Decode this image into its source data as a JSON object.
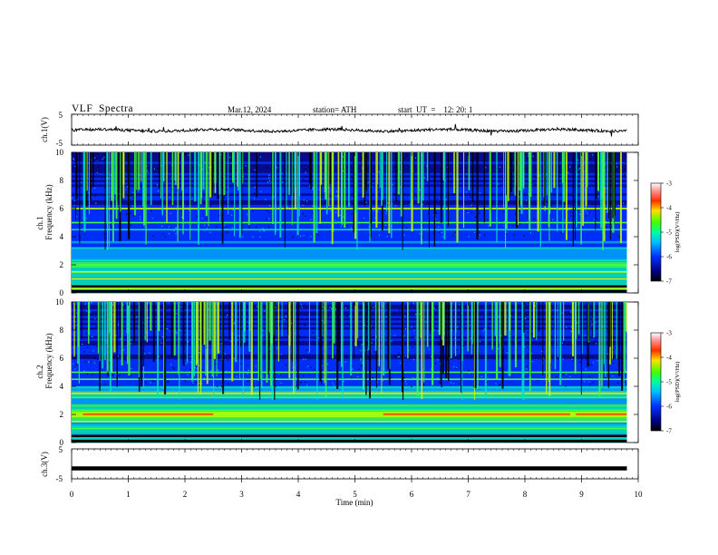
{
  "header": {
    "title": "VLF  Spectra",
    "date": "Mar.12, 2024",
    "station": "station= ATH",
    "start_ut": "start  UT  =    12: 20: 1"
  },
  "chart_data": [
    {
      "type": "line",
      "panel": "ch1-waveform",
      "ylabel": "ch.1(V)",
      "yticks": [
        "5",
        "-5"
      ],
      "ylim": [
        -5,
        5
      ],
      "xlim": [
        0,
        10
      ],
      "series": [
        {
          "values_description_range": [
            -1.2,
            0.6
          ]
        }
      ],
      "baseline": -0.2
    },
    {
      "type": "heatmap",
      "panel": "ch1-spectrogram",
      "ylabel_top": "ch.1",
      "ylabel": "Frequency (kHz)",
      "yticks": [
        "0",
        "2",
        "4",
        "6",
        "8",
        "10"
      ],
      "ylim": [
        0,
        10
      ],
      "xlim": [
        0,
        9.8
      ],
      "colorbar": {
        "label": "log(PSD)(V²/Hz)",
        "ticks": [
          "-3",
          "-4",
          "-5",
          "-6",
          "-7"
        ],
        "range": [
          -7,
          -3
        ]
      },
      "bands_khz": [
        0.3,
        0.6,
        1.0,
        1.5,
        2.0,
        2.3,
        3.2,
        4.5,
        5.0,
        6.0
      ],
      "bright_band_khz": 2.0
    },
    {
      "type": "heatmap",
      "panel": "ch2-spectrogram",
      "ylabel_top": "ch.2",
      "ylabel": "Frequency (kHz)",
      "yticks": [
        "0",
        "2",
        "4",
        "6",
        "8",
        "10"
      ],
      "ylim": [
        0,
        10
      ],
      "xlim": [
        0,
        9.8
      ],
      "colorbar": {
        "label": "log(PSD)(V²/Hz)",
        "ticks": [
          "-3",
          "-4",
          "-5",
          "-6",
          "-7"
        ],
        "range": [
          -7,
          -3
        ]
      },
      "bands_khz": [
        0.5,
        1.0,
        1.5,
        2.0,
        2.3,
        3.2,
        3.5,
        4.5,
        5.0
      ],
      "bright_band_khz": 2.0
    },
    {
      "type": "line",
      "panel": "ch3-waveform",
      "ylabel": "ch.3(V)",
      "yticks": [
        "5",
        "-5"
      ],
      "ylim": [
        -5,
        5
      ],
      "xlim": [
        0,
        10
      ],
      "series": [
        {
          "constant_value": -1.5
        }
      ]
    }
  ],
  "xaxis": {
    "label": "Time  (min)",
    "ticks": [
      "0",
      "1",
      "2",
      "3",
      "4",
      "5",
      "6",
      "7",
      "8",
      "9",
      "10"
    ],
    "range": [
      0,
      10
    ]
  },
  "colors": {
    "frame": "#000000",
    "trace": "#000000",
    "colormap": [
      "#000000",
      "#0a0a8a",
      "#0030ff",
      "#00a0ff",
      "#00e0c0",
      "#40ff40",
      "#c8ff00",
      "#ffd000",
      "#ff3000",
      "#ffd0d0"
    ]
  }
}
